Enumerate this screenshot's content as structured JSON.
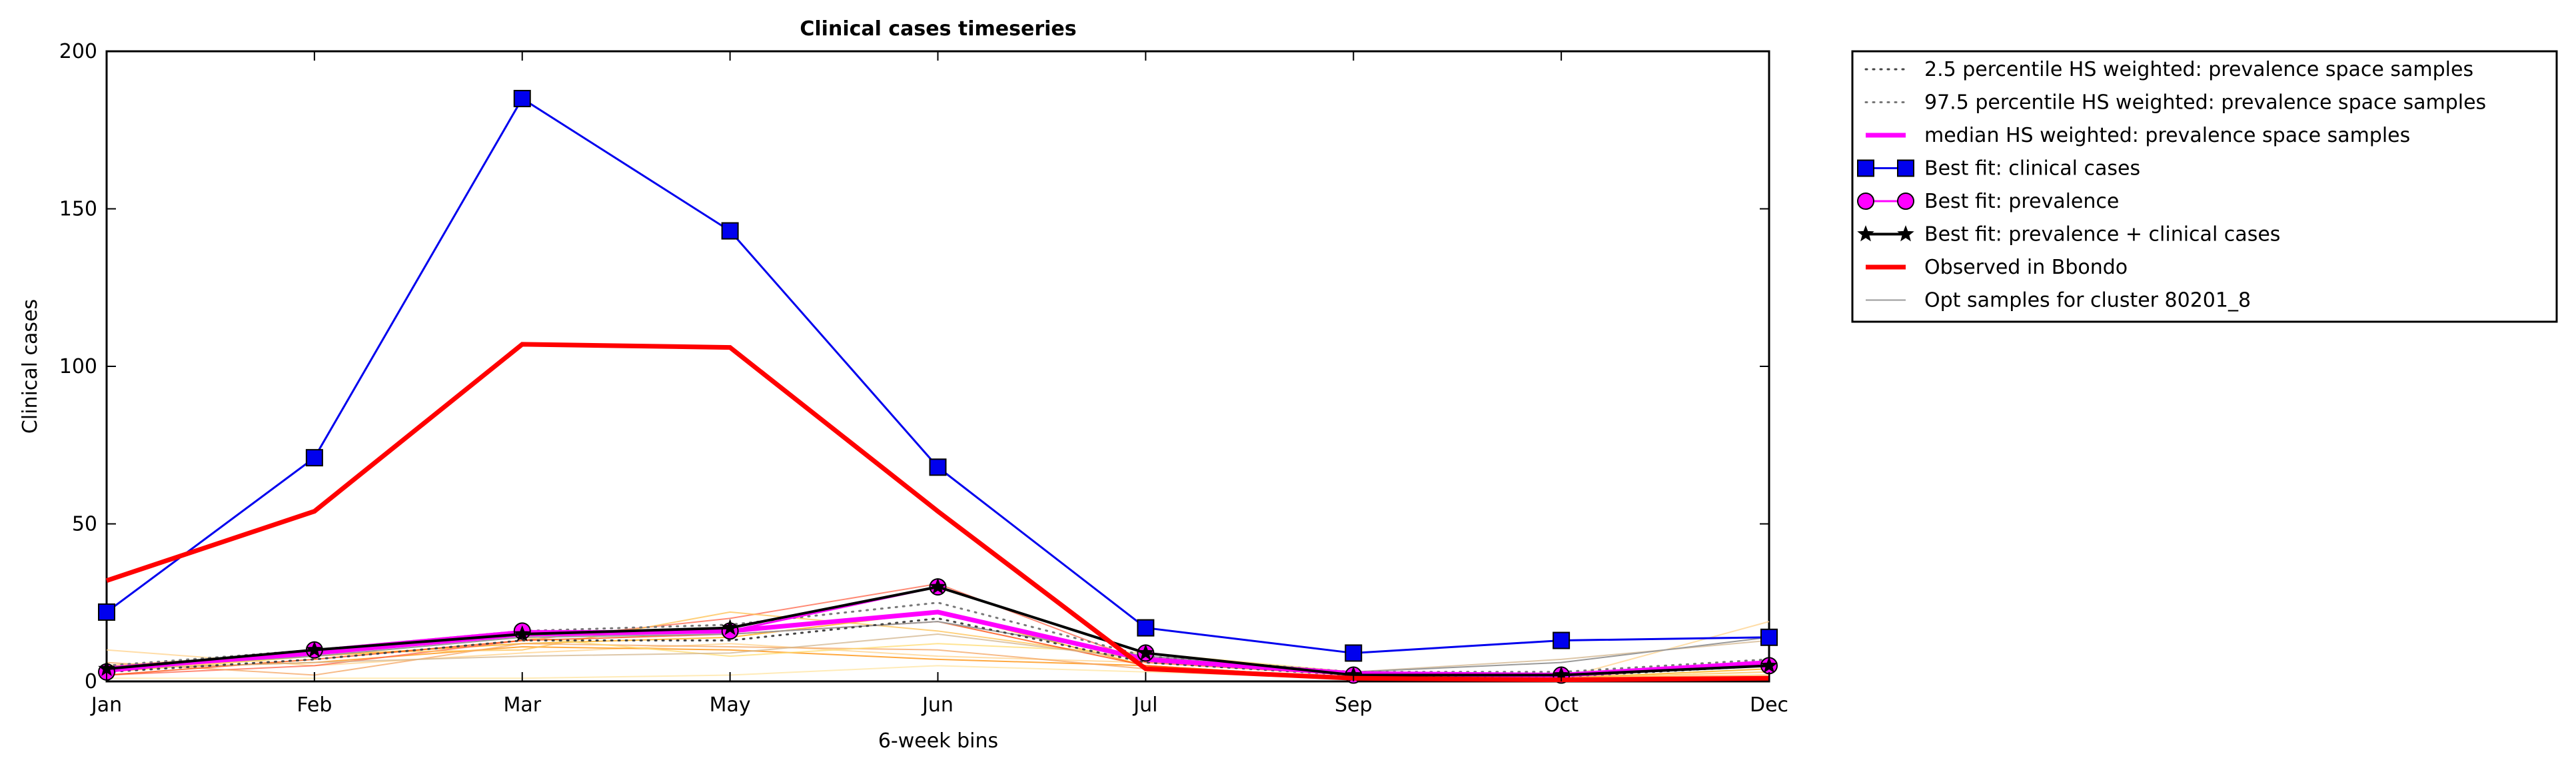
{
  "chart_data": {
    "type": "line",
    "title": "Clinical cases timeseries",
    "xlabel": "6-week bins",
    "ylabel": "Clinical cases",
    "categories": [
      "Jan",
      "Feb",
      "Mar",
      "May",
      "Jun",
      "Jul",
      "Sep",
      "Oct",
      "Dec"
    ],
    "ylim": [
      0,
      200
    ],
    "yticks": [
      0,
      50,
      100,
      150,
      200
    ],
    "grid": false,
    "legend_placement": "outside-right-top",
    "series": [
      {
        "name": "2.5 percentile HS weighted: prevalence space samples",
        "style": "dotted",
        "color": "#444444",
        "values": [
          3,
          7,
          13,
          13,
          20,
          6,
          2,
          1.5,
          5
        ]
      },
      {
        "name": "97.5 percentile HS weighted: prevalence space samples",
        "style": "dotted",
        "color": "#777777",
        "values": [
          5,
          10,
          16,
          18,
          25,
          8,
          3,
          3,
          7
        ]
      },
      {
        "name": "median HS weighted: prevalence space samples",
        "style": "magenta",
        "color": "#ff00ff",
        "values": [
          4,
          9,
          15,
          16,
          22,
          7,
          2.5,
          2,
          6
        ]
      },
      {
        "name": "Best fit: clinical cases",
        "style": "square",
        "color": "#0000ee",
        "values": [
          22,
          71,
          185,
          143,
          68,
          17,
          9,
          13,
          14
        ]
      },
      {
        "name": "Best fit: prevalence",
        "style": "circle",
        "color": "#ff00ff",
        "values": [
          3,
          10,
          16,
          16,
          30,
          9,
          2,
          2,
          5
        ]
      },
      {
        "name": "Best fit: prevalence + clinical cases",
        "style": "star",
        "color": "#000000",
        "values": [
          4,
          10,
          15,
          17,
          30,
          9,
          2,
          2,
          5
        ]
      },
      {
        "name": "Observed in Bbondo",
        "style": "thick",
        "color": "#ff0000",
        "values": [
          32,
          54,
          107,
          106,
          54,
          4,
          1,
          0.5,
          1
        ]
      },
      {
        "name": "Opt samples for cluster 80201_8",
        "style": "thin",
        "color": "#999999",
        "values": [
          4,
          8,
          14,
          15,
          19,
          8,
          3,
          6,
          14
        ]
      }
    ],
    "samples": [
      {
        "color": "#ffa500",
        "values": [
          3,
          8,
          12,
          14,
          22,
          5,
          1,
          1,
          4
        ]
      },
      {
        "color": "#ffd28a",
        "values": [
          10,
          5,
          9,
          12,
          8,
          6,
          2,
          1,
          19
        ]
      },
      {
        "color": "#ff8c00",
        "values": [
          4,
          6,
          11,
          10,
          7,
          5,
          1,
          1,
          2
        ]
      },
      {
        "color": "#ff6347",
        "values": [
          2,
          5,
          13,
          20,
          31,
          6,
          2,
          2,
          5
        ]
      },
      {
        "color": "#ffc04d",
        "values": [
          5,
          9,
          10,
          22,
          16,
          7,
          2,
          1,
          3
        ]
      },
      {
        "color": "#f4a460",
        "values": [
          6,
          2,
          12,
          11,
          10,
          4,
          1,
          1,
          6
        ]
      },
      {
        "color": "#ffdb6e",
        "values": [
          3,
          8,
          14,
          8,
          12,
          9,
          3,
          2,
          5
        ]
      },
      {
        "color": "#ff4500",
        "values": [
          2,
          7,
          13,
          15,
          19,
          5,
          1,
          1,
          1
        ]
      },
      {
        "color": "#d2b48c",
        "values": [
          4,
          6,
          8,
          9,
          15,
          7,
          3,
          7,
          13
        ]
      },
      {
        "color": "#ffe4a0",
        "values": [
          1,
          1,
          1,
          2,
          5,
          3,
          1,
          0.5,
          2
        ]
      }
    ]
  }
}
